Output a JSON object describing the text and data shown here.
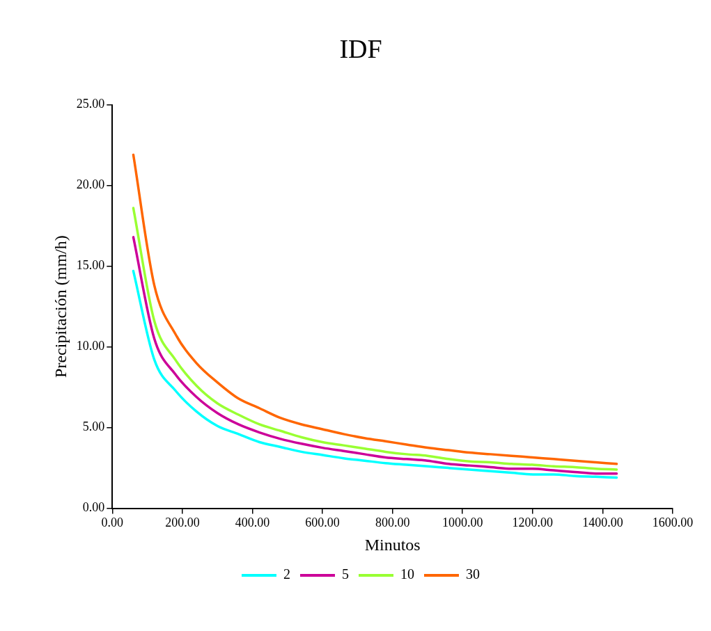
{
  "chart_data": {
    "type": "line",
    "title": "IDF",
    "xlabel": "Minutos",
    "ylabel": "Precipitación (mm/h)",
    "x": [
      60,
      120,
      180,
      240,
      300,
      360,
      420,
      480,
      540,
      600,
      660,
      720,
      780,
      840,
      900,
      960,
      1020,
      1080,
      1140,
      1200,
      1260,
      1320,
      1380,
      1440
    ],
    "series": [
      {
        "name": "2",
        "color": "#00ffff",
        "values": [
          14.7,
          9.2,
          7.3,
          6.0,
          5.1,
          4.6,
          4.1,
          3.8,
          3.5,
          3.3,
          3.1,
          2.95,
          2.8,
          2.7,
          2.6,
          2.5,
          2.4,
          2.3,
          2.2,
          2.1,
          2.1,
          2.0,
          1.95,
          1.9
        ]
      },
      {
        "name": "5",
        "color": "#cc0099",
        "values": [
          16.8,
          10.5,
          8.3,
          6.9,
          5.9,
          5.2,
          4.7,
          4.3,
          4.0,
          3.75,
          3.55,
          3.35,
          3.15,
          3.05,
          2.95,
          2.75,
          2.65,
          2.55,
          2.45,
          2.45,
          2.35,
          2.25,
          2.15,
          2.15
        ]
      },
      {
        "name": "10",
        "color": "#99ff33",
        "values": [
          18.6,
          11.6,
          9.2,
          7.6,
          6.5,
          5.8,
          5.2,
          4.8,
          4.4,
          4.1,
          3.9,
          3.7,
          3.5,
          3.35,
          3.25,
          3.05,
          2.9,
          2.85,
          2.75,
          2.7,
          2.6,
          2.55,
          2.45,
          2.4
        ]
      },
      {
        "name": "30",
        "color": "#ff6600",
        "values": [
          21.9,
          13.8,
          10.8,
          9.0,
          7.8,
          6.8,
          6.2,
          5.6,
          5.2,
          4.9,
          4.6,
          4.35,
          4.15,
          3.95,
          3.75,
          3.6,
          3.45,
          3.35,
          3.25,
          3.15,
          3.05,
          2.95,
          2.85,
          2.75
        ]
      }
    ],
    "xlim": [
      0,
      1600
    ],
    "xticks": [
      {
        "value": 0,
        "label": "0.00"
      },
      {
        "value": 200,
        "label": "200.00"
      },
      {
        "value": 400,
        "label": "400.00"
      },
      {
        "value": 600,
        "label": "600.00"
      },
      {
        "value": 800,
        "label": "800.00"
      },
      {
        "value": 1000,
        "label": "1000.00"
      },
      {
        "value": 1200,
        "label": "1200.00"
      },
      {
        "value": 1400,
        "label": "1400.00"
      },
      {
        "value": 1600,
        "label": "1600.00"
      }
    ],
    "ylim": [
      0,
      25
    ],
    "yticks": [
      {
        "value": 0,
        "label": "0.00"
      },
      {
        "value": 5,
        "label": "5.00"
      },
      {
        "value": 10,
        "label": "10.00"
      },
      {
        "value": 15,
        "label": "15.00"
      },
      {
        "value": 20,
        "label": "20.00"
      },
      {
        "value": 25,
        "label": "25.00"
      }
    ],
    "grid": false,
    "legend": "bottom",
    "marker": "none",
    "line_style": "solid"
  }
}
